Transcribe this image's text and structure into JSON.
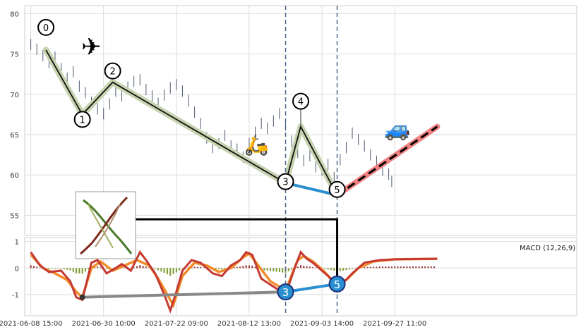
{
  "chart_data": {
    "type": "line",
    "title": "",
    "price_panel": {
      "ylim": [
        52.5,
        81
      ],
      "yticks": [
        55,
        60,
        65,
        70,
        75,
        80
      ],
      "price_series": [
        [
          0.0,
          76.2
        ],
        [
          2.0,
          75.6
        ],
        [
          4.0,
          74.8
        ],
        [
          6.0,
          73.9
        ],
        [
          8.0,
          74.6
        ],
        [
          10.0,
          73.2
        ],
        [
          12.0,
          72.0
        ],
        [
          14.0,
          72.8
        ],
        [
          16.0,
          71.0
        ],
        [
          18.0,
          70.2
        ],
        [
          20.0,
          69.0
        ],
        [
          22.0,
          68.2
        ],
        [
          24.0,
          67.6
        ],
        [
          26.0,
          68.8
        ],
        [
          28.0,
          70.4
        ],
        [
          30.0,
          69.8
        ],
        [
          32.0,
          70.9
        ],
        [
          34.0,
          71.6
        ],
        [
          36.0,
          71.8
        ],
        [
          38.0,
          70.6
        ],
        [
          40.0,
          69.8
        ],
        [
          42.0,
          68.9
        ],
        [
          44.0,
          69.9
        ],
        [
          46.0,
          70.8
        ],
        [
          48.0,
          71.2
        ],
        [
          50.0,
          70.4
        ],
        [
          52.0,
          69.2
        ],
        [
          54.0,
          67.8
        ],
        [
          56.0,
          66.4
        ],
        [
          58.0,
          64.6
        ],
        [
          60.0,
          63.4
        ],
        [
          62.0,
          63.9
        ],
        [
          64.0,
          64.9
        ],
        [
          66.0,
          63.6
        ],
        [
          68.0,
          63.2
        ],
        [
          70.0,
          62.2
        ],
        [
          72.0,
          63.9
        ],
        [
          74.0,
          65.3
        ],
        [
          76.0,
          66.4
        ],
        [
          78.0,
          65.8
        ],
        [
          80.0,
          66.7
        ],
        [
          82.0,
          67.6
        ],
        [
          84.0,
          66.2
        ],
        [
          86.0,
          64.2
        ],
        [
          88.0,
          62.8
        ],
        [
          90.0,
          61.8
        ],
        [
          92.0,
          62.4
        ],
        [
          94.0,
          61.0
        ],
        [
          96.0,
          60.6
        ],
        [
          98.0,
          61.3
        ],
        [
          100.0,
          59.7
        ],
        [
          102.0,
          61.9
        ],
        [
          104.0,
          63.4
        ],
        [
          106.0,
          65.2
        ],
        [
          108.0,
          64.4
        ],
        [
          110.0,
          63.6
        ],
        [
          112.0,
          62.5
        ],
        [
          114.0,
          61.7
        ],
        [
          116.0,
          60.6
        ],
        [
          118.0,
          60.1
        ],
        [
          119.0,
          59.2
        ]
      ],
      "x_domain": [
        -2,
        180
      ],
      "xtick_labels": [
        "2021-06-08 15:00",
        "2021-06-30 10:00",
        "2021-07-22 09:00",
        "2021-08-12 13:00",
        "2021-09-03 14:00",
        "2021-09-27 11:00"
      ],
      "xtick_positions": [
        0,
        24,
        48,
        72,
        96,
        120
      ],
      "wave_points": [
        {
          "label": "0",
          "x": 5,
          "y": 75.5
        },
        {
          "label": "1",
          "x": 17,
          "y": 67.5
        },
        {
          "label": "2",
          "x": 27,
          "y": 71.5
        },
        {
          "label": "3",
          "x": 84,
          "y": 59.0
        },
        {
          "label": "4",
          "x": 89,
          "y": 66.0
        },
        {
          "label": "5",
          "x": 101,
          "y": 57.5
        }
      ],
      "projection": [
        [
          101,
          57.5
        ],
        [
          134,
          66.0
        ]
      ],
      "link_3_5": [
        [
          84,
          59.0
        ],
        [
          101,
          57.5
        ]
      ],
      "vlines": [
        84,
        101
      ],
      "emojis": [
        "airplane",
        "scooter",
        "car"
      ]
    },
    "macd_panel": {
      "label": "MACD (12,26,9)",
      "ylim": [
        -1.8,
        1.15
      ],
      "yticks": [
        1,
        0,
        -1
      ],
      "markers": [
        {
          "label": "3",
          "x": 84,
          "y": -0.9
        },
        {
          "label": "5",
          "x": 101,
          "y": -0.6
        }
      ],
      "gray_line": [
        [
          17,
          -1.1
        ],
        [
          84,
          -0.9
        ]
      ],
      "macd": [
        [
          0,
          0.6
        ],
        [
          3,
          0.1
        ],
        [
          6,
          -0.15
        ],
        [
          10,
          -0.1
        ],
        [
          13,
          -0.5
        ],
        [
          15,
          -1.1
        ],
        [
          17,
          -1.2
        ],
        [
          20,
          0.2
        ],
        [
          22,
          0.3
        ],
        [
          25,
          -0.2
        ],
        [
          28,
          0.0
        ],
        [
          30,
          0.15
        ],
        [
          33,
          -0.1
        ],
        [
          36,
          0.6
        ],
        [
          38,
          0.3
        ],
        [
          41,
          -0.2
        ],
        [
          44,
          -1.0
        ],
        [
          46,
          -1.6
        ],
        [
          48,
          -0.9
        ],
        [
          50,
          -0.1
        ],
        [
          53,
          0.3
        ],
        [
          56,
          0.2
        ],
        [
          60,
          -0.2
        ],
        [
          63,
          -0.3
        ],
        [
          66,
          0.1
        ],
        [
          69,
          0.3
        ],
        [
          71,
          0.6
        ],
        [
          73,
          0.5
        ],
        [
          76,
          -0.4
        ],
        [
          80,
          -0.7
        ],
        [
          84,
          -1.0
        ],
        [
          87,
          0.0
        ],
        [
          89,
          0.6
        ],
        [
          91,
          0.35
        ],
        [
          93,
          0.2
        ],
        [
          95,
          0.0
        ],
        [
          98,
          -0.3
        ],
        [
          101,
          -0.7
        ],
        [
          103,
          -0.55
        ],
        [
          106,
          -0.2
        ],
        [
          110,
          0.2
        ],
        [
          115,
          0.3
        ],
        [
          120,
          0.33
        ],
        [
          134,
          0.35
        ]
      ],
      "signal": [
        [
          0,
          0.5
        ],
        [
          4,
          0.0
        ],
        [
          8,
          -0.2
        ],
        [
          12,
          -0.45
        ],
        [
          15,
          -0.9
        ],
        [
          17,
          -1.1
        ],
        [
          20,
          0.0
        ],
        [
          23,
          0.25
        ],
        [
          27,
          -0.1
        ],
        [
          31,
          0.1
        ],
        [
          35,
          0.3
        ],
        [
          39,
          0.1
        ],
        [
          42,
          -0.4
        ],
        [
          45,
          -1.0
        ],
        [
          47,
          -1.4
        ],
        [
          50,
          -0.3
        ],
        [
          54,
          0.2
        ],
        [
          58,
          0.1
        ],
        [
          62,
          -0.15
        ],
        [
          66,
          0.0
        ],
        [
          70,
          0.4
        ],
        [
          72,
          0.55
        ],
        [
          75,
          0.1
        ],
        [
          79,
          -0.5
        ],
        [
          84,
          -0.85
        ],
        [
          88,
          0.3
        ],
        [
          90,
          0.45
        ],
        [
          93,
          0.25
        ],
        [
          96,
          -0.05
        ],
        [
          99,
          -0.4
        ],
        [
          101,
          -0.55
        ],
        [
          104,
          -0.45
        ],
        [
          108,
          0.0
        ],
        [
          113,
          0.25
        ],
        [
          120,
          0.33
        ],
        [
          134,
          0.35
        ]
      ]
    }
  }
}
